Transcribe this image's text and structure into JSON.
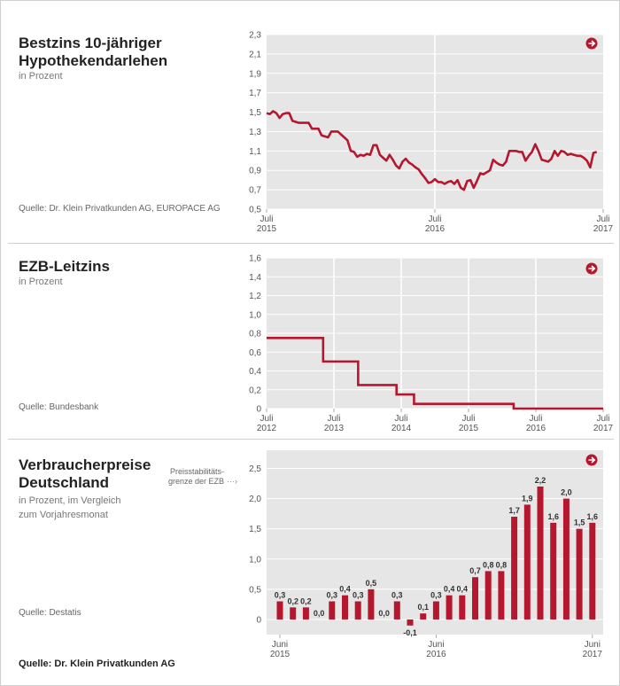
{
  "footer_source": "Quelle: Dr. Klein Privatkunden AG",
  "colors": {
    "accent": "#b5172e",
    "plot_bg": "#e6e6e6",
    "grid": "#ffffff"
  },
  "chart_data": [
    {
      "type": "line",
      "title_line1": "Bestzins 10-jähriger",
      "title_line2": "Hypothekendarlehen",
      "subtitle": "in Prozent",
      "source": "Quelle: Dr. Klein Privatkunden AG, EUROPACE AG",
      "icon": "arrow-right-circle-icon",
      "ylim": [
        0.5,
        2.3
      ],
      "yticks": [
        "2,3",
        "2,1",
        "1,9",
        "1,7",
        "1,5",
        "1,3",
        "1,1",
        "0,9",
        "0,7",
        "0,5"
      ],
      "ytick_values": [
        2.3,
        2.1,
        1.9,
        1.7,
        1.5,
        1.3,
        1.1,
        0.9,
        0.7,
        0.5
      ],
      "xlim": [
        0,
        104
      ],
      "xticks": [
        {
          "month": "Juli",
          "year": "2015",
          "x": 0
        },
        {
          "month": "Juli",
          "year": "2016",
          "x": 52
        },
        {
          "month": "Juli",
          "year": "2017",
          "x": 104
        }
      ],
      "y": [
        1.49,
        1.48,
        1.51,
        1.49,
        1.44,
        1.48,
        1.49,
        1.49,
        1.41,
        1.4,
        1.39,
        1.39,
        1.39,
        1.39,
        1.33,
        1.33,
        1.33,
        1.26,
        1.25,
        1.24,
        1.3,
        1.3,
        1.3,
        1.27,
        1.24,
        1.21,
        1.1,
        1.09,
        1.04,
        1.06,
        1.05,
        1.07,
        1.06,
        1.16,
        1.16,
        1.06,
        1.03,
        1.0,
        1.06,
        1.01,
        0.95,
        0.92,
        0.99,
        1.02,
        0.98,
        0.96,
        0.93,
        0.91,
        0.86,
        0.82,
        0.77,
        0.78,
        0.81,
        0.78,
        0.78,
        0.76,
        0.78,
        0.79,
        0.76,
        0.8,
        0.72,
        0.7,
        0.79,
        0.8,
        0.72,
        0.79,
        0.87,
        0.86,
        0.88,
        0.9,
        1.01,
        0.98,
        0.96,
        0.95,
        0.99,
        1.1,
        1.1,
        1.1,
        1.09,
        1.09,
        1.0,
        1.05,
        1.09,
        1.17,
        1.1,
        1.01,
        1.0,
        0.99,
        1.02,
        1.1,
        1.05,
        1.1,
        1.09,
        1.06,
        1.07,
        1.06,
        1.05,
        1.05,
        1.03,
        1.0,
        0.93,
        1.08,
        1.09
      ]
    },
    {
      "type": "line",
      "step": true,
      "title_line1": "EZB-Leitzins",
      "subtitle": "in Prozent",
      "source": "Quelle: Bundesbank",
      "icon": "arrow-right-circle-icon",
      "ylim": [
        0,
        1.6
      ],
      "yticks": [
        "1,6",
        "1,4",
        "1,2",
        "1,0",
        "0,8",
        "0,6",
        "0,4",
        "0,2",
        "0"
      ],
      "ytick_values": [
        1.6,
        1.4,
        1.2,
        1.0,
        0.8,
        0.6,
        0.4,
        0.2,
        0
      ],
      "xlim": [
        2012.5,
        2017.5
      ],
      "xticks": [
        {
          "month": "Juli",
          "year": "2012",
          "x": 2012.5
        },
        {
          "month": "Juli",
          "year": "2013",
          "x": 2013.5
        },
        {
          "month": "Juli",
          "year": "2014",
          "x": 2014.5
        },
        {
          "month": "Juli",
          "year": "2015",
          "x": 2015.5
        },
        {
          "month": "Juli",
          "year": "2016",
          "x": 2016.5
        },
        {
          "month": "Juli",
          "year": "2017",
          "x": 2017.5
        }
      ],
      "x": [
        2012.5,
        2013.34,
        2013.86,
        2014.43,
        2014.69,
        2016.17,
        2017.5
      ],
      "y": [
        0.75,
        0.5,
        0.25,
        0.15,
        0.05,
        0.0,
        0.0
      ]
    },
    {
      "type": "bar",
      "title_line1": "Verbraucherpreise",
      "title_line2": "Deutschland",
      "subtitle_line1": "in Prozent, im Vergleich",
      "subtitle_line2": "zum Vorjahresmonat",
      "source": "Quelle: Destatis",
      "icon": "arrow-right-circle-icon",
      "annotation_line1": "Preisstabilitäts-",
      "annotation_line2": "grenze der EZB",
      "annotation_arrow": "···›",
      "ylim": [
        -0.25,
        2.8
      ],
      "yticks": [
        "2,5",
        "2,0",
        "1,5",
        "1,0",
        "0,5",
        "0"
      ],
      "ytick_values": [
        2.5,
        2.0,
        1.5,
        1.0,
        0.5,
        0
      ],
      "xticks": [
        {
          "month": "Juni",
          "year": "2015",
          "index": 0
        },
        {
          "month": "Juni",
          "year": "2016",
          "index": 12
        },
        {
          "month": "Juni",
          "year": "2017",
          "index": 24
        }
      ],
      "values": [
        0.3,
        0.2,
        0.2,
        0.0,
        0.3,
        0.4,
        0.3,
        0.5,
        0.0,
        0.3,
        -0.1,
        0.1,
        0.3,
        0.4,
        0.4,
        0.7,
        0.8,
        0.8,
        1.7,
        1.9,
        2.2,
        1.6,
        2.0,
        1.5,
        1.6
      ],
      "labels": [
        "0,3",
        "0,2",
        "0,2",
        "0,0",
        "0,3",
        "0,4",
        "0,3",
        "0,5",
        "0,0",
        "0,3",
        "-0,1",
        "0,1",
        "0,3",
        "0,4",
        "0,4",
        "0,7",
        "0,8",
        "0,8",
        "1,7",
        "1,9",
        "2,2",
        "1,6",
        "2,0",
        "1,5",
        "1,6"
      ]
    }
  ]
}
